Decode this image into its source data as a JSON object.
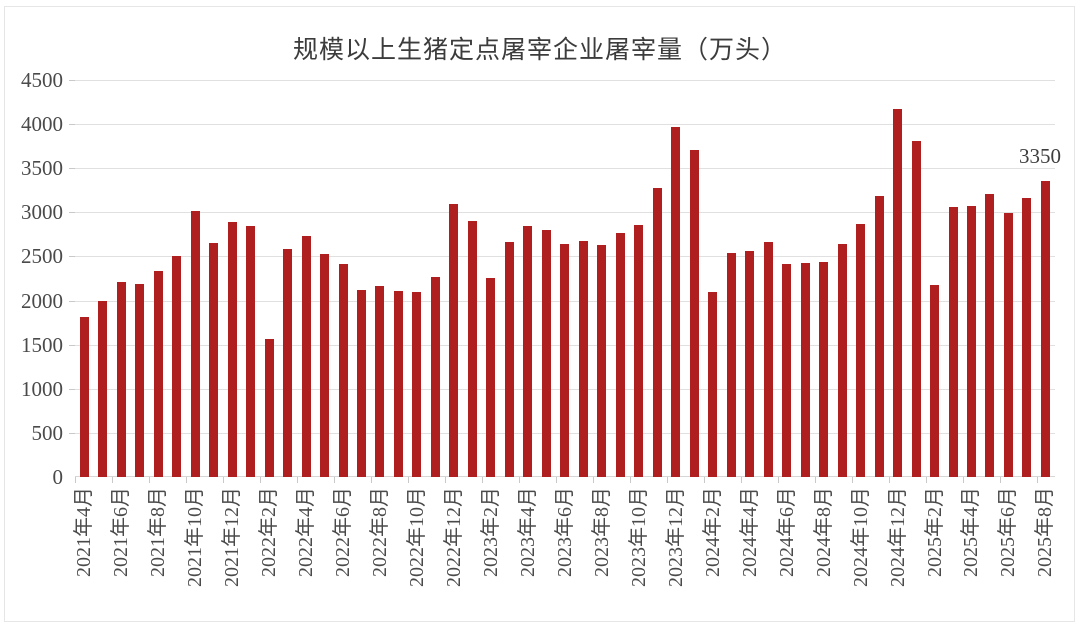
{
  "chart_data": {
    "type": "bar",
    "title": "规模以上生猪定点屠宰企业屠宰量（万头）",
    "x": [
      "2021年4月",
      "2021年5月",
      "2021年6月",
      "2021年7月",
      "2021年8月",
      "2021年9月",
      "2021年10月",
      "2021年11月",
      "2021年12月",
      "2022年1月",
      "2022年2月",
      "2022年3月",
      "2022年4月",
      "2022年5月",
      "2022年6月",
      "2022年7月",
      "2022年8月",
      "2022年9月",
      "2022年10月",
      "2022年11月",
      "2022年12月",
      "2023年1月",
      "2023年2月",
      "2023年3月",
      "2023年4月",
      "2023年5月",
      "2023年6月",
      "2023年7月",
      "2023年8月",
      "2023年9月",
      "2023年10月",
      "2023年11月",
      "2023年12月",
      "2024年1月",
      "2024年2月",
      "2024年3月",
      "2024年4月",
      "2024年5月",
      "2024年6月",
      "2024年7月",
      "2024年8月",
      "2024年9月",
      "2024年10月",
      "2024年11月",
      "2024年12月",
      "2025年1月",
      "2025年2月",
      "2025年3月",
      "2025年4月",
      "2025年5月",
      "2025年6月",
      "2025年7月",
      "2025年8月"
    ],
    "values": [
      1810,
      2000,
      2210,
      2190,
      2330,
      2510,
      3020,
      2650,
      2890,
      2840,
      1570,
      2590,
      2730,
      2530,
      2420,
      2120,
      2160,
      2110,
      2100,
      2270,
      3090,
      2900,
      2260,
      2660,
      2850,
      2800,
      2640,
      2680,
      2630,
      2770,
      2860,
      3280,
      3970,
      3710,
      2100,
      2540,
      2560,
      2660,
      2420,
      2430,
      2440,
      2640,
      2870,
      3180,
      4170,
      3810,
      2180,
      3060,
      3070,
      3210,
      2990,
      3160,
      3350
    ],
    "ylim": [
      0,
      4500
    ],
    "y_tick_step": 500,
    "y_tick_labels": [
      "4500",
      "4000",
      "3500",
      "3000",
      "2500",
      "2000",
      "1500",
      "1000",
      "500",
      "0"
    ],
    "x_tick_label_interval": 2,
    "grid": "horizontal-only",
    "legend": "none",
    "bar_color": "#b01f1f",
    "gridline_color": "#e0e0e0",
    "axis_text_color": "#4a4a4a",
    "annotation": {
      "text": "3350",
      "bar_index": 52
    }
  }
}
